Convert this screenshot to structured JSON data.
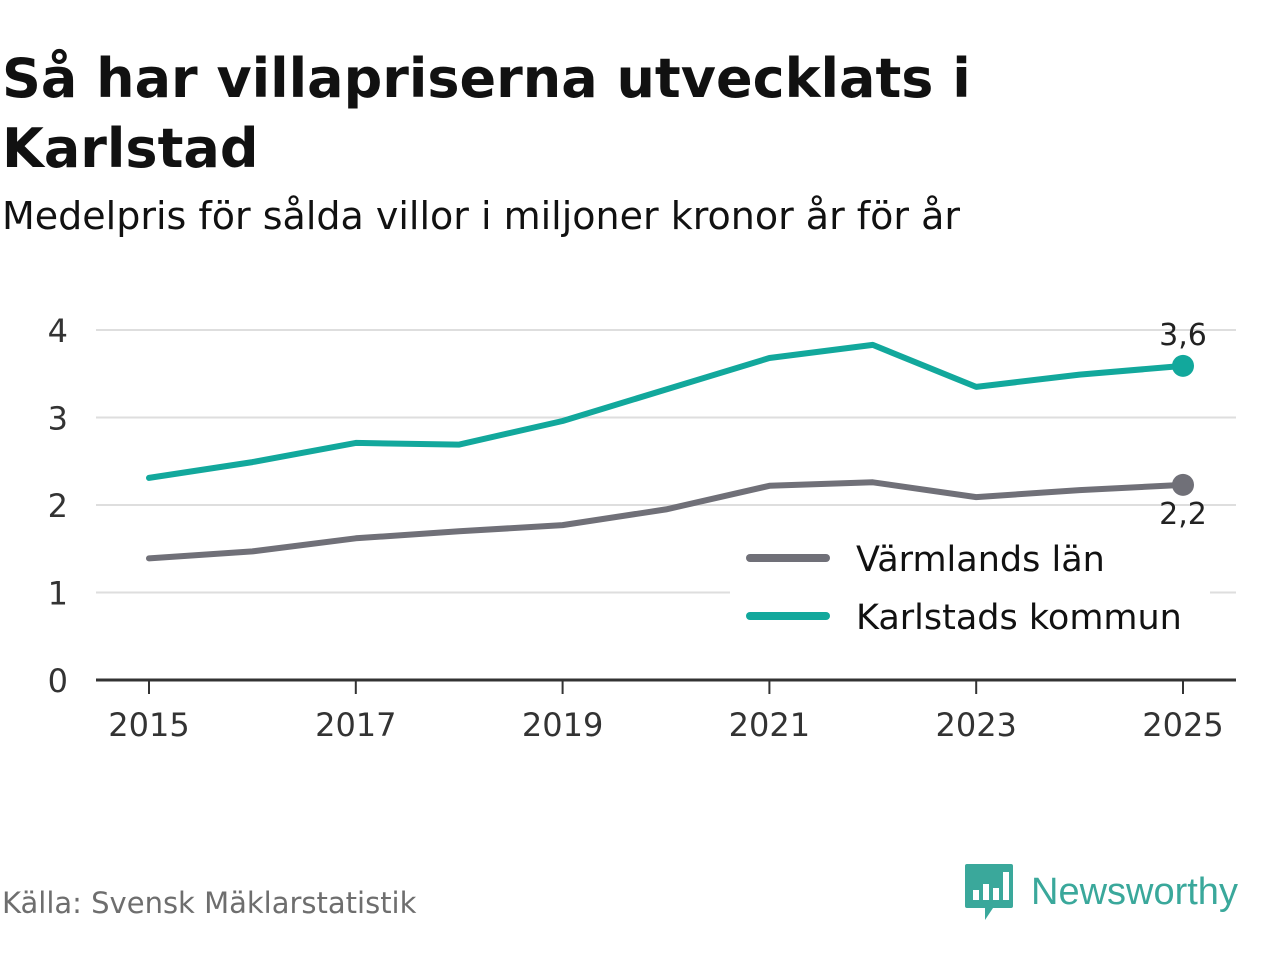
{
  "colors": {
    "karlstad": "#12a89c",
    "varmland": "#707078",
    "grid": "#dedede",
    "axis": "#333333",
    "brand": "#3aa89b"
  },
  "chart_data": {
    "type": "line",
    "title": "Så har villapriserna utvecklats i Karlstad",
    "subtitle": "Medelpris för sålda villor i miljoner kronor år för år",
    "x": [
      2015,
      2016,
      2017,
      2018,
      2019,
      2020,
      2021,
      2022,
      2023,
      2024,
      2025
    ],
    "xticks": [
      "2015",
      "2017",
      "2019",
      "2021",
      "2023",
      "2025"
    ],
    "yticks": [
      "0",
      "1",
      "2",
      "3",
      "4"
    ],
    "xlim": [
      2015,
      2025
    ],
    "ylim": [
      0,
      4
    ],
    "grid": true,
    "legend_position": "bottom-right",
    "series": [
      {
        "name": "Värmlands län",
        "color": "#707078",
        "values": [
          1.39,
          1.47,
          1.62,
          1.7,
          1.77,
          1.95,
          2.22,
          2.26,
          2.09,
          2.17,
          2.23
        ],
        "end_label": "2,2",
        "end_label_position": "below"
      },
      {
        "name": "Karlstads kommun",
        "color": "#12a89c",
        "values": [
          2.31,
          2.49,
          2.71,
          2.69,
          2.96,
          3.32,
          3.68,
          3.83,
          3.35,
          3.49,
          3.59
        ],
        "end_label": "3,6",
        "end_label_position": "above"
      }
    ]
  },
  "footer": {
    "source": "Källa: Svensk Mäklarstatistik",
    "brand": "Newsworthy",
    "brand_icon": "newsworthy-logo-icon"
  }
}
